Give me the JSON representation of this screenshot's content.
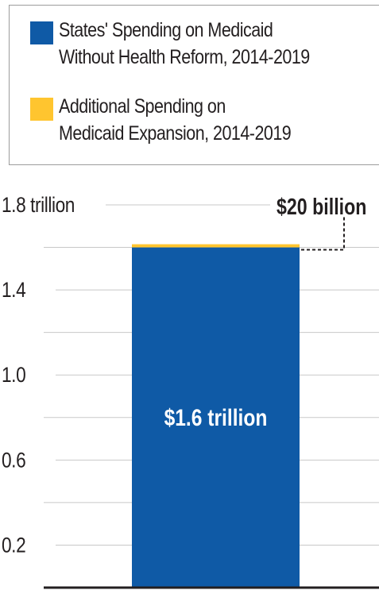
{
  "legend": [
    {
      "line1": "States' Spending on Medicaid",
      "line2": "Without Health Reform, 2014-2019",
      "color": "#0f5aa6"
    },
    {
      "line1": "Additional Spending on",
      "line2": "Medicaid Expansion, 2014-2019",
      "color": "#ffc52f"
    }
  ],
  "chart_data": {
    "type": "bar",
    "stacked": true,
    "categories": [
      ""
    ],
    "series": [
      {
        "name": "States' Spending on Medicaid Without Health Reform, 2014-2019",
        "values": [
          1.6
        ],
        "color": "#0f5aa6"
      },
      {
        "name": "Additional Spending on Medicaid Expansion, 2014-2019",
        "values": [
          0.02
        ],
        "color": "#ffc52f"
      }
    ],
    "ylim": [
      0,
      1.8
    ],
    "yticks": [
      0.2,
      0.4,
      0.6,
      0.8,
      1.0,
      1.2,
      1.4,
      1.6,
      1.8
    ],
    "ytick_labels": [
      "0.2",
      "",
      "0.6",
      "",
      "1.0",
      "",
      "1.4",
      "",
      "1.8 trillion"
    ],
    "grid": true,
    "legend_position": "top",
    "data_labels": {
      "base": "$1.6 trillion",
      "additional": "$20 billion"
    }
  }
}
